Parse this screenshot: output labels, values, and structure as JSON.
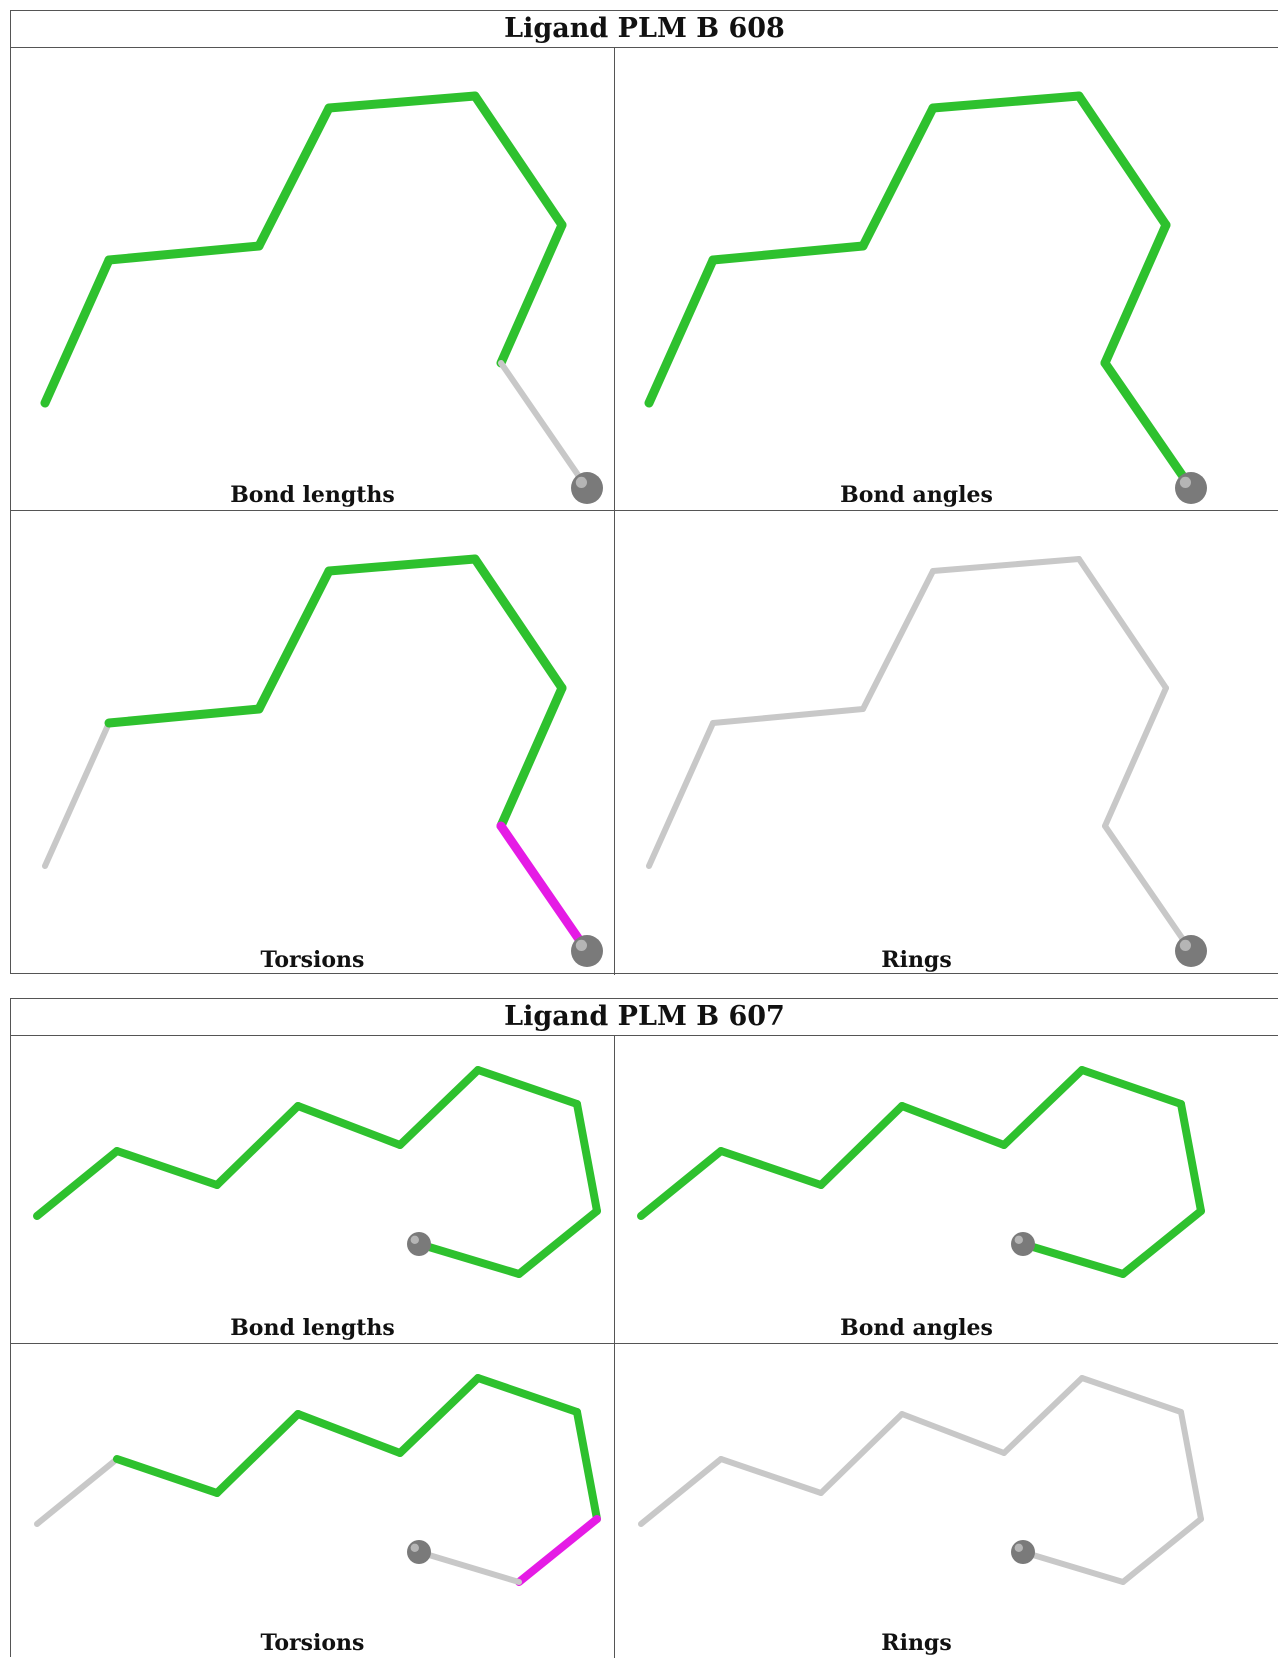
{
  "colors": {
    "ok": "#2ec12e",
    "outlier": "#e51be5",
    "not_assessed": "#c8c8c8",
    "atom": "#7a7a7a"
  },
  "figures": [
    {
      "title": "Ligand PLM B 608",
      "panels": [
        {
          "label": "Bond lengths",
          "segments": [
            "ok",
            "ok",
            "ok",
            "ok",
            "ok",
            "ok",
            "not_assessed",
            "ok"
          ]
        },
        {
          "label": "Bond angles",
          "segments": [
            "ok",
            "ok",
            "ok",
            "ok",
            "ok",
            "ok",
            "ok",
            "ok"
          ]
        },
        {
          "label": "Torsions",
          "segments": [
            "not_assessed",
            "ok",
            "ok",
            "ok",
            "ok",
            "ok",
            "outlier",
            "not_assessed"
          ]
        },
        {
          "label": "Rings",
          "segments": [
            "not_assessed",
            "not_assessed",
            "not_assessed",
            "not_assessed",
            "not_assessed",
            "not_assessed",
            "not_assessed",
            "not_assessed"
          ]
        }
      ]
    },
    {
      "title": "Ligand PLM B 607",
      "panels": [
        {
          "label": "Bond lengths",
          "segments": [
            "ok",
            "ok",
            "ok",
            "ok",
            "ok",
            "ok",
            "ok",
            "ok",
            "ok",
            "outlier"
          ]
        },
        {
          "label": "Bond angles",
          "segments": [
            "ok",
            "ok",
            "ok",
            "ok",
            "ok",
            "ok",
            "ok",
            "ok",
            "ok",
            "ok"
          ]
        },
        {
          "label": "Torsions",
          "segments": [
            "not_assessed",
            "ok",
            "ok",
            "ok",
            "ok",
            "ok",
            "ok",
            "outlier",
            "not_assessed",
            "not_assessed"
          ]
        },
        {
          "label": "Rings",
          "segments": [
            "not_assessed",
            "not_assessed",
            "not_assessed",
            "not_assessed",
            "not_assessed",
            "not_assessed",
            "not_assessed",
            "not_assessed",
            "not_assessed",
            "not_assessed"
          ]
        }
      ]
    }
  ]
}
